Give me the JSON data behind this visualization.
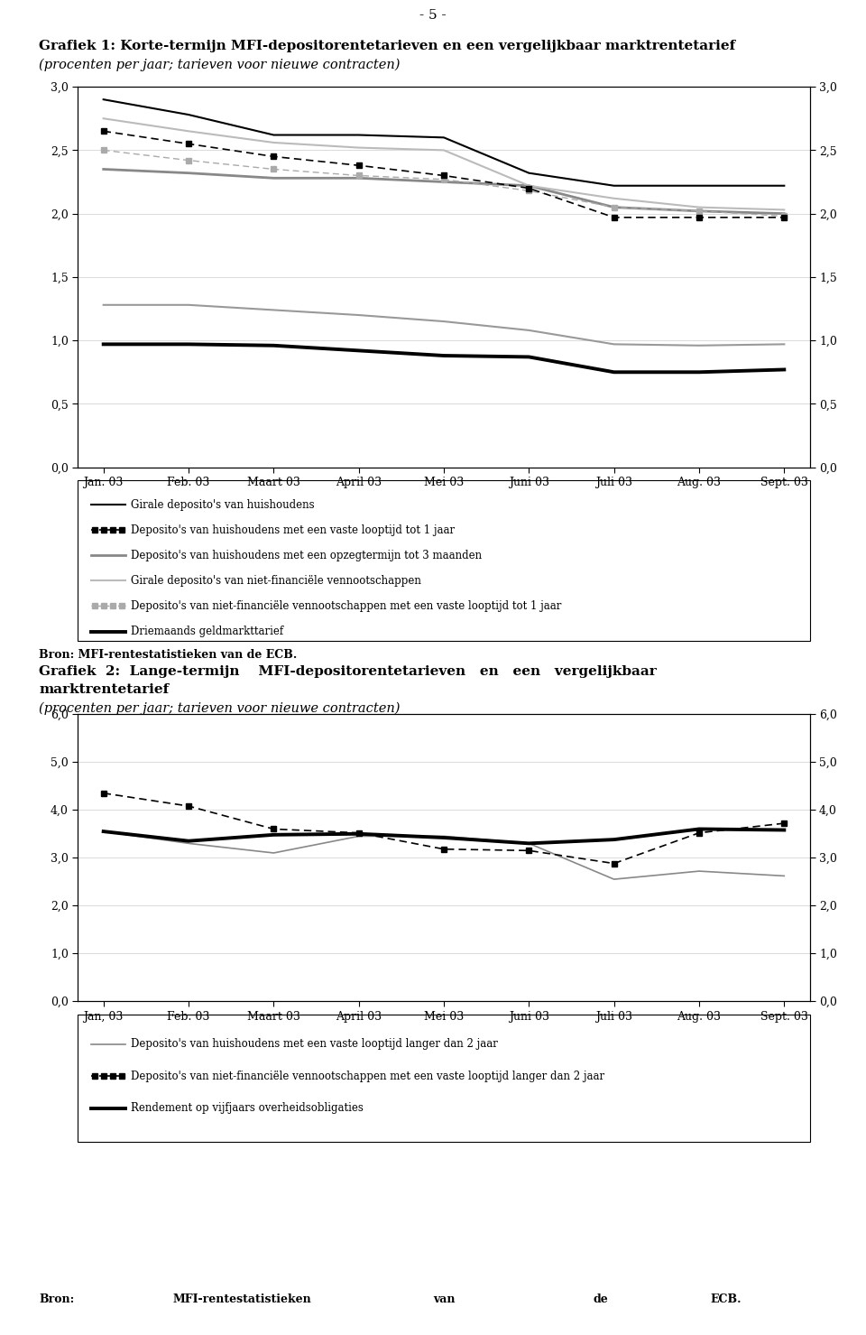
{
  "page_number": "- 5 -",
  "chart1": {
    "title": "Grafiek 1: Korte-termijn MFI-depositorentetarieven en een vergelijkbaar marktrentetarief",
    "subtitle": "(procenten per jaar; tarieven voor nieuwe contracten)",
    "x_labels": [
      "Jan. 03",
      "Feb. 03",
      "Maart 03",
      "April 03",
      "Mei 03",
      "Juni 03",
      "Juli 03",
      "Aug. 03",
      "Sept. 03"
    ],
    "ylim": [
      0.0,
      3.0
    ],
    "yticks": [
      0.0,
      0.5,
      1.0,
      1.5,
      2.0,
      2.5,
      3.0
    ],
    "series": {
      "girale_huish": [
        2.9,
        2.78,
        2.62,
        2.62,
        2.6,
        2.32,
        2.22,
        2.22,
        2.22
      ],
      "deposito_huish_vast1": [
        2.65,
        2.55,
        2.45,
        2.38,
        2.3,
        2.2,
        1.97,
        1.97,
        1.97
      ],
      "deposito_huish_opzeg": [
        2.35,
        2.32,
        2.28,
        2.28,
        2.25,
        2.22,
        2.05,
        2.02,
        2.0
      ],
      "girale_nfv": [
        2.75,
        2.65,
        2.56,
        2.52,
        2.5,
        2.22,
        2.12,
        2.05,
        2.03
      ],
      "deposito_nfv_vast1": [
        2.5,
        2.42,
        2.35,
        2.3,
        2.27,
        2.18,
        2.05,
        2.02,
        1.98
      ],
      "driemaands_solid": [
        1.28,
        1.28,
        1.24,
        1.2,
        1.15,
        1.08,
        0.97,
        0.96,
        0.97
      ],
      "driemaands": [
        0.97,
        0.97,
        0.96,
        0.92,
        0.88,
        0.87,
        0.75,
        0.75,
        0.77
      ]
    },
    "legend": [
      "Girale deposito's van huishoudens",
      "Deposito's van huishoudens met een vaste looptijd tot 1 jaar",
      "Deposito's van huishoudens met een opzegtermijn tot 3 maanden",
      "Girale deposito's van niet-financiële vennootschappen",
      "Deposito's van niet-financiële vennootschappen met een vaste looptijd tot 1 jaar",
      "Driemaands geldmarkttarief"
    ]
  },
  "bron1": "Bron: MFI-rentestatistieken van de ECB.",
  "chart2": {
    "title_line1": "Grafiek  2:  Lange-termijn    MFI-depositorentetarieven   en   een   vergelijkbaar",
    "title_line2": "marktrentetarief",
    "subtitle": "(procenten per jaar; tarieven voor nieuwe contracten)",
    "x_labels": [
      "Jan, 03",
      "Feb. 03",
      "Maart 03",
      "April 03",
      "Mei 03",
      "Juni 03",
      "Juli 03",
      "Aug. 03",
      "Sept. 03"
    ],
    "ylim": [
      0.0,
      6.0
    ],
    "yticks": [
      0.0,
      1.0,
      2.0,
      3.0,
      4.0,
      5.0,
      6.0
    ],
    "series": {
      "deposito_huish_vast2": [
        3.55,
        3.3,
        3.1,
        3.45,
        3.45,
        3.3,
        2.55,
        2.72,
        2.62
      ],
      "deposito_nfv_vast2": [
        4.35,
        4.08,
        3.6,
        3.52,
        3.18,
        3.15,
        2.88,
        3.52,
        3.72
      ],
      "vijfjaars": [
        3.55,
        3.35,
        3.48,
        3.5,
        3.42,
        3.3,
        3.38,
        3.6,
        3.58
      ]
    },
    "legend": [
      "Deposito's van huishoudens met een vaste looptijd langer dan 2 jaar",
      "Deposito's van niet-financiële vennootschappen met een vaste looptijd langer dan 2 jaar",
      "Rendement op vijfjaars overheidsobligaties"
    ]
  },
  "bron2_parts": [
    "Bron:",
    "MFI-rentestatistieken",
    "van",
    "de",
    "ECB."
  ]
}
